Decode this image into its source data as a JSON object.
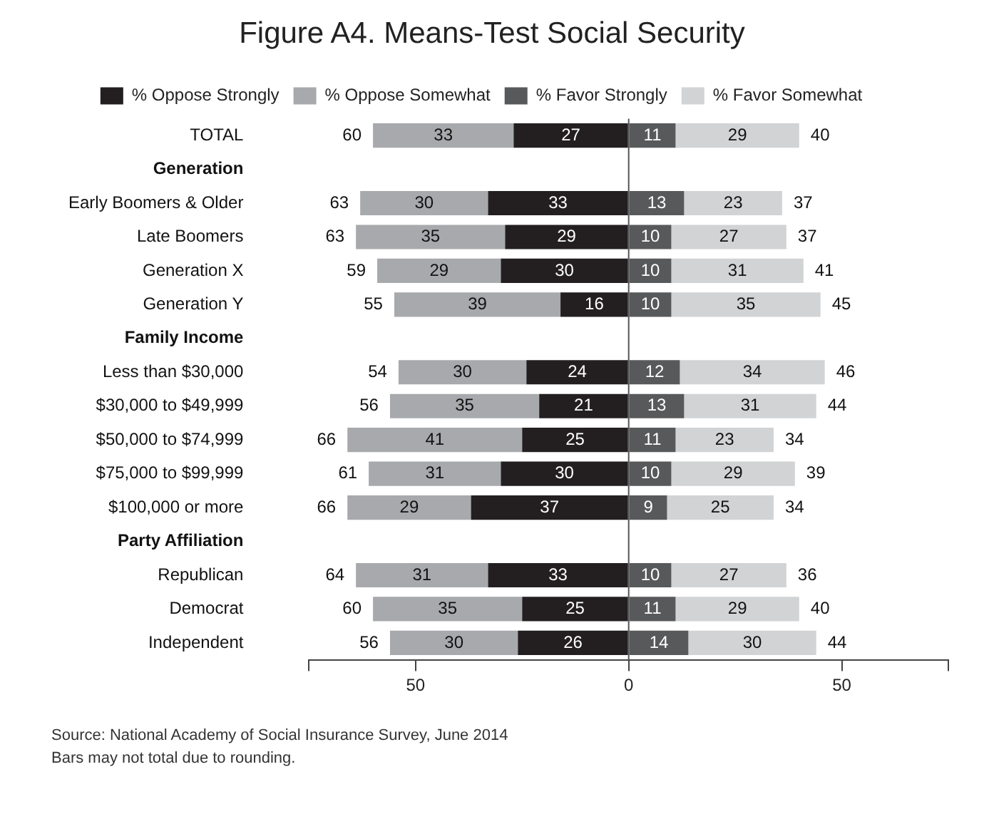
{
  "chart_data": {
    "type": "bar",
    "orientation": "horizontal",
    "title": "Figure A4. Means-Test Social Security",
    "categories": [
      "TOTAL",
      "Generation",
      "Early Boomers & Older",
      "Late Boomers",
      "Generation X",
      "Generation Y",
      "Family Income",
      "Less than $30,000",
      "$30,000 to $49,999",
      "$50,000 to $74,999",
      "$75,000 to $99,999",
      "$100,000 or more",
      "Party Affiliation",
      "Republican",
      "Democrat",
      "Independent"
    ],
    "series": [
      {
        "name": "% Oppose Strongly",
        "color": "#231f20",
        "values": [
          27,
          null,
          33,
          29,
          30,
          16,
          null,
          24,
          21,
          25,
          30,
          37,
          null,
          33,
          25,
          26
        ],
        "base": [
          -27,
          null,
          -33,
          -29,
          -30,
          -16,
          null,
          -24,
          -21,
          -25,
          -30,
          -37,
          null,
          -33,
          -25,
          -26
        ]
      },
      {
        "name": "% Oppose Somewhat",
        "color": "#a7a9ac",
        "values": [
          33,
          null,
          30,
          35,
          29,
          39,
          null,
          30,
          35,
          41,
          31,
          29,
          null,
          31,
          35,
          30
        ],
        "base": [
          -60,
          null,
          -63,
          -64,
          -59,
          -55,
          null,
          -54,
          -56,
          -66,
          -61,
          -66,
          null,
          -64,
          -60,
          -56
        ]
      },
      {
        "name": "% Favor Strongly",
        "color": "#58595b",
        "values": [
          11,
          null,
          13,
          10,
          10,
          10,
          null,
          12,
          13,
          11,
          10,
          9,
          null,
          10,
          11,
          14
        ],
        "base": [
          0,
          null,
          0,
          0,
          0,
          0,
          null,
          0,
          0,
          0,
          0,
          0,
          null,
          0,
          0,
          0
        ]
      },
      {
        "name": "% Favor Somewhat",
        "color": "#d1d3d4",
        "values": [
          29,
          null,
          23,
          27,
          31,
          35,
          null,
          34,
          31,
          23,
          29,
          25,
          null,
          27,
          29,
          30
        ],
        "base": [
          11,
          null,
          13,
          10,
          10,
          10,
          null,
          12,
          13,
          11,
          10,
          9,
          null,
          10,
          11,
          14
        ]
      }
    ],
    "data_labels": true,
    "totals": [
      [
        "60",
        "40"
      ],
      null,
      [
        "63",
        "37"
      ],
      [
        "63",
        "37"
      ],
      [
        "59",
        "41"
      ],
      [
        "55",
        "45"
      ],
      null,
      [
        "54",
        "46"
      ],
      [
        "56",
        "44"
      ],
      [
        "66",
        "34"
      ],
      [
        "61",
        "39"
      ],
      [
        "66",
        "34"
      ],
      null,
      [
        "64",
        "36"
      ],
      [
        "60",
        "40"
      ],
      [
        "56",
        "44"
      ]
    ],
    "xlim": [
      -75,
      75
    ],
    "xticks": [
      {
        "value": -75,
        "label": null
      },
      {
        "value": -50,
        "label": "50"
      },
      0,
      {
        "value": 50,
        "label": "50"
      },
      {
        "value": 75,
        "label": null
      }
    ],
    "ref_lines": [
      {
        "axis": "x",
        "value": 0,
        "color": "#555555"
      }
    ],
    "grid": false,
    "legend": "top",
    "annotations": [
      "Source: National Academy of Social Insurance Survey, June 2014",
      "Bars may not total due to rounding."
    ]
  }
}
